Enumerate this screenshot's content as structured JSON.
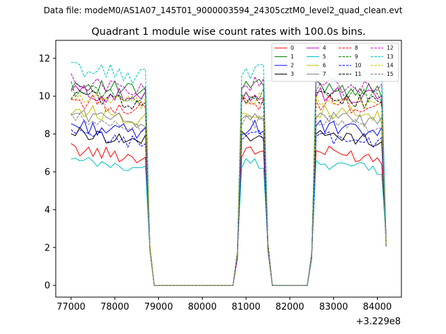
{
  "chart_data": {
    "type": "line",
    "suptitle": "Data file: modeM0/AS1A07_145T01_9000003594_24305cztM0_level2_quad_clean.evt",
    "title": "Quadrant 1 module wise count rates with 100.0s bins.",
    "xlabel": "",
    "ylabel": "",
    "offset_text": "+3.229e8",
    "xlim": [
      76650,
      84550
    ],
    "ylim": [
      -0.62,
      12.95
    ],
    "xticks": [
      77000,
      78000,
      79000,
      80000,
      81000,
      82000,
      83000,
      84000
    ],
    "yticks": [
      0,
      2,
      4,
      6,
      8,
      10,
      12
    ],
    "legend_position": "top-right",
    "legend_columns": 4,
    "segments": [
      {
        "start": 77000,
        "end": 78700
      },
      {
        "start": 80900,
        "end": 81400
      },
      {
        "start": 82600,
        "end": 84100
      }
    ],
    "series": [
      {
        "name": "0",
        "color": "#ff0000",
        "dash": "solid",
        "level": 6.7,
        "amp": 0.35,
        "seed": 1
      },
      {
        "name": "1",
        "color": "#008000",
        "dash": "solid",
        "level": 10.2,
        "amp": 0.4,
        "seed": 2
      },
      {
        "name": "2",
        "color": "#0000ff",
        "dash": "solid",
        "level": 8.0,
        "amp": 0.4,
        "seed": 3
      },
      {
        "name": "3",
        "color": "#000000",
        "dash": "solid",
        "level": 7.6,
        "amp": 0.35,
        "seed": 4
      },
      {
        "name": "4",
        "color": "#bf00bf",
        "dash": "solid",
        "level": 9.8,
        "amp": 0.45,
        "seed": 5
      },
      {
        "name": "5",
        "color": "#00bfbf",
        "dash": "solid",
        "level": 6.1,
        "amp": 0.3,
        "seed": 6
      },
      {
        "name": "6",
        "color": "#bfbf00",
        "dash": "solid",
        "level": 8.8,
        "amp": 0.4,
        "seed": 7
      },
      {
        "name": "7",
        "color": "#808080",
        "dash": "solid",
        "level": 8.6,
        "amp": 0.35,
        "seed": 8
      },
      {
        "name": "8",
        "color": "#ff0000",
        "dash": "dashed",
        "level": 9.3,
        "amp": 0.45,
        "seed": 9
      },
      {
        "name": "9",
        "color": "#008000",
        "dash": "dashed",
        "level": 9.9,
        "amp": 0.4,
        "seed": 10
      },
      {
        "name": "10",
        "color": "#0000ff",
        "dash": "dashed",
        "level": 7.5,
        "amp": 0.35,
        "seed": 11
      },
      {
        "name": "11",
        "color": "#000000",
        "dash": "dashed",
        "level": 9.6,
        "amp": 0.4,
        "seed": 12
      },
      {
        "name": "12",
        "color": "#bf00bf",
        "dash": "dashed",
        "level": 10.3,
        "amp": 0.4,
        "seed": 13
      },
      {
        "name": "13",
        "color": "#00bfbf",
        "dash": "dashed",
        "level": 11.0,
        "amp": 0.45,
        "seed": 14
      },
      {
        "name": "14",
        "color": "#bfbf00",
        "dash": "dashed",
        "level": 9.5,
        "amp": 0.4,
        "seed": 15
      },
      {
        "name": "15",
        "color": "#808080",
        "dash": "dashed",
        "level": 8.3,
        "amp": 0.35,
        "seed": 16
      }
    ]
  }
}
